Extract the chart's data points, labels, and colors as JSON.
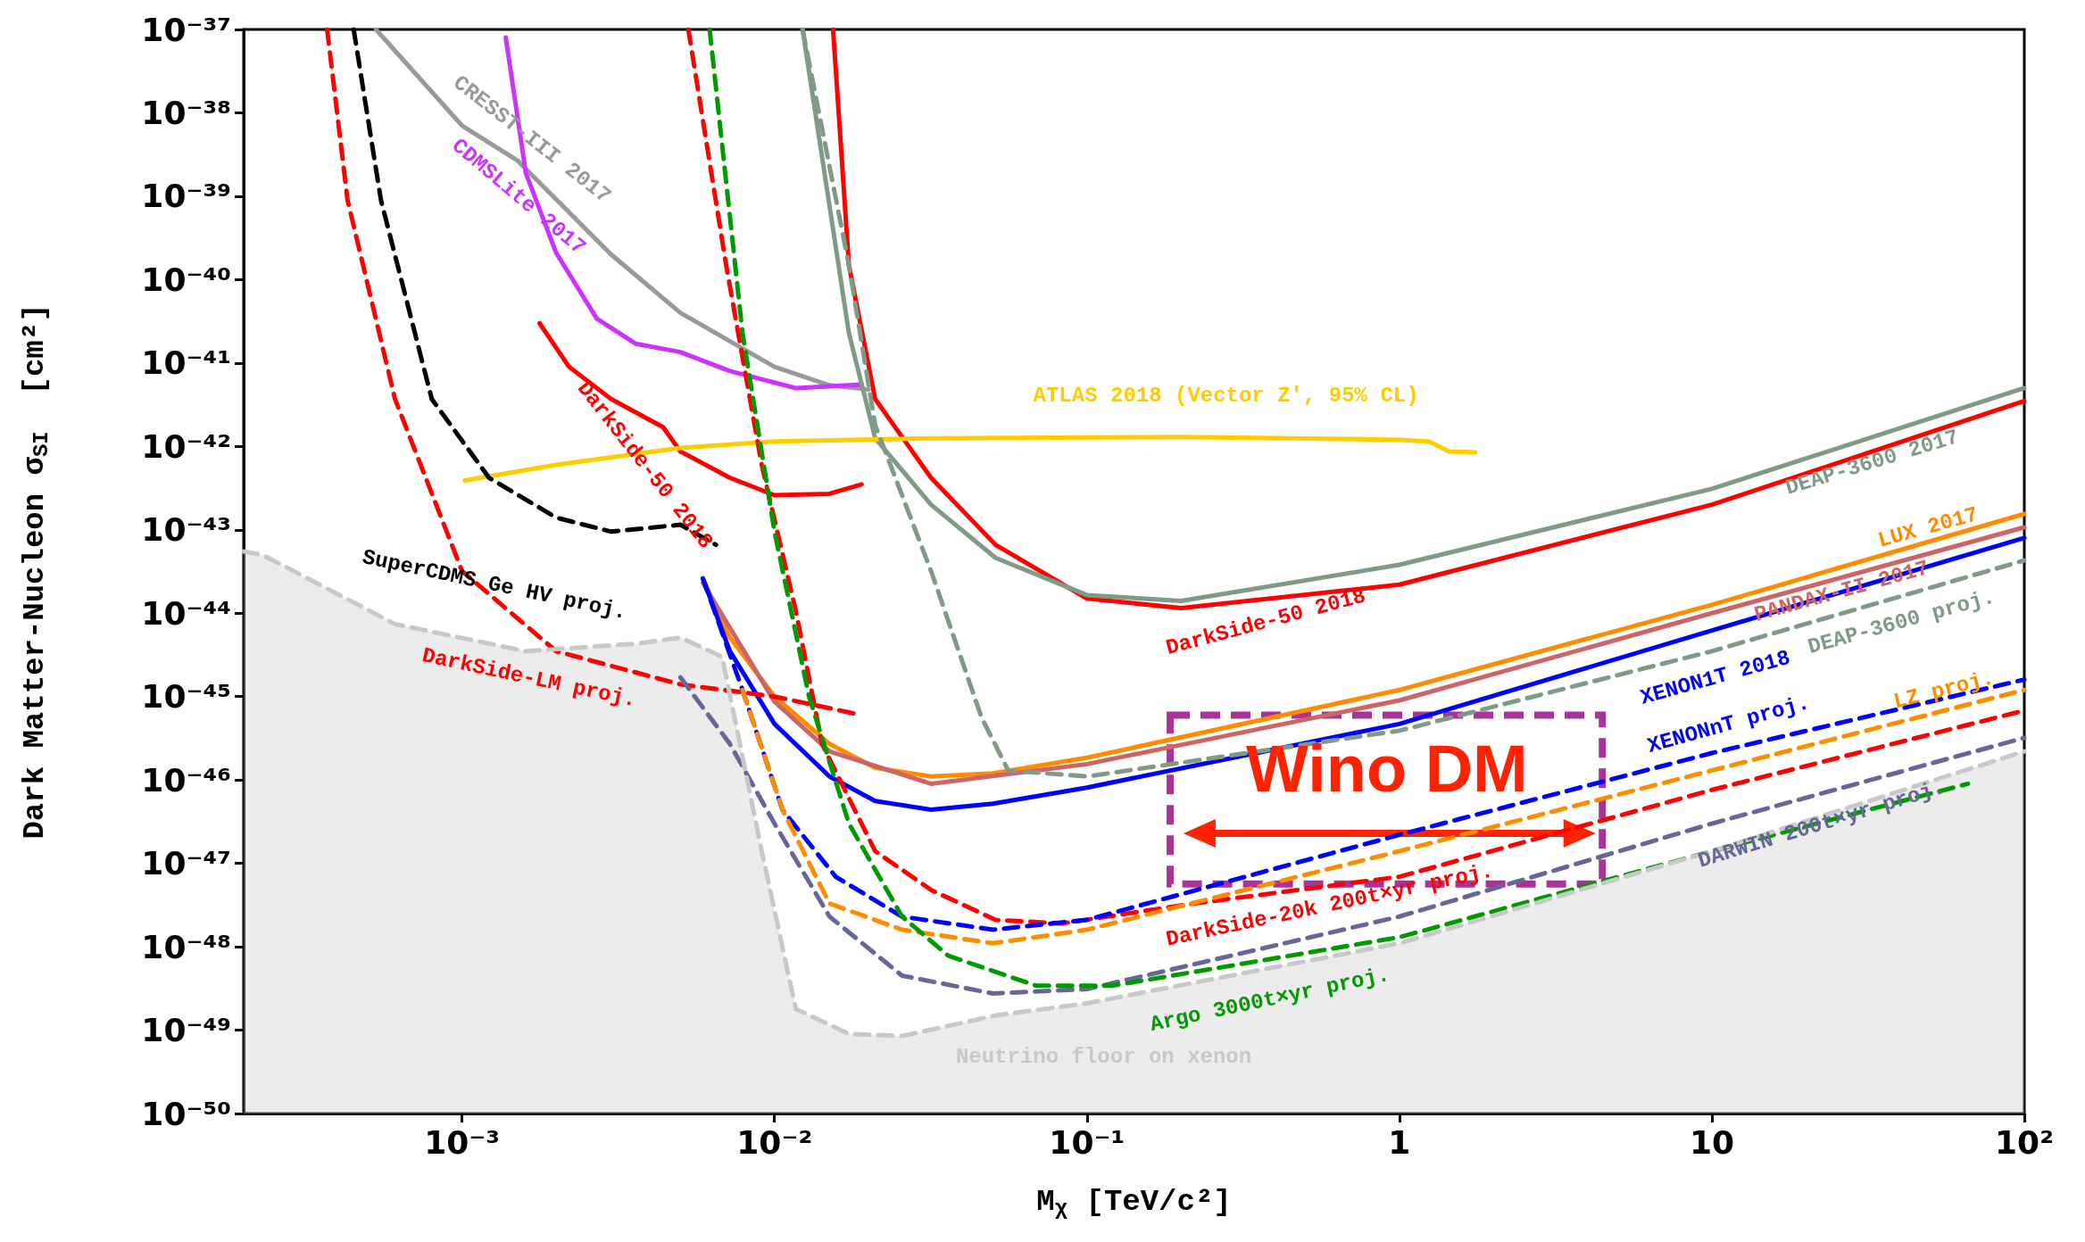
{
  "chart_data": {
    "type": "line",
    "xlabel": "M$_{χ}$ [TeV/c²]",
    "ylabel": "Dark Matter-Nucleon σ$_{SI}$  [cm²]",
    "log": "xy",
    "xlim": [
      0.0002,
      100
    ],
    "ylim": [
      1e-50,
      1e-37
    ],
    "xticks": [
      {
        "value": 0.001,
        "label": "10⁻³"
      },
      {
        "value": 0.01,
        "label": "10⁻²"
      },
      {
        "value": 0.1,
        "label": "10⁻¹"
      },
      1,
      10,
      {
        "value": 100,
        "label": "10²"
      }
    ],
    "yticks": [
      {
        "value": 1e-50,
        "label": "10⁻⁵⁰"
      },
      {
        "value": 1e-49,
        "label": "10⁻⁴⁹"
      },
      {
        "value": 1e-48,
        "label": "10⁻⁴⁸"
      },
      {
        "value": 1e-47,
        "label": "10⁻⁴⁷"
      },
      {
        "value": 1e-46,
        "label": "10⁻⁴⁶"
      },
      {
        "value": 1e-45,
        "label": "10⁻⁴⁵"
      },
      {
        "value": 1e-44,
        "label": "10⁻⁴⁴"
      },
      {
        "value": 1e-43,
        "label": "10⁻⁴³"
      },
      {
        "value": 1e-42,
        "label": "10⁻⁴²"
      },
      {
        "value": 1e-41,
        "label": "10⁻⁴¹"
      },
      {
        "value": 1e-40,
        "label": "10⁻⁴⁰"
      },
      {
        "value": 1e-39,
        "label": "10⁻³⁹"
      },
      {
        "value": 1e-38,
        "label": "10⁻³⁸"
      },
      {
        "value": 1e-37,
        "label": "10⁻³⁷"
      }
    ],
    "annotations": [
      "Wino DM"
    ],
    "series": [
      {
        "name": "CRESST-III 2017",
        "color": "#999999",
        "line_style": "solid",
        "x": [
          0.00053,
          0.001,
          0.0015,
          0.003,
          0.005,
          0.01,
          0.015,
          0.02
        ],
        "values": [
          1e-37,
          7e-39,
          2.7e-39,
          2e-40,
          4e-41,
          9e-42,
          5.4e-42,
          4.8e-42
        ]
      },
      {
        "name": "CDMSLite 2017",
        "color": "#cc33ff",
        "line_style": "solid",
        "x": [
          0.00138,
          0.0016,
          0.002,
          0.0027,
          0.0036,
          0.005,
          0.0072,
          0.0117,
          0.019
        ],
        "values": [
          8e-38,
          1.9e-39,
          2.1e-40,
          3.4e-41,
          1.7e-41,
          1.35e-41,
          8e-42,
          5e-42,
          5.5e-42
        ]
      },
      {
        "name": "DarkSide-50 2018",
        "color": "#ff0000",
        "line_style": "solid",
        "x": [
          0.00177,
          0.0022,
          0.003,
          0.0044,
          0.005,
          0.0072,
          0.01,
          0.015,
          0.019
        ],
        "values": [
          3e-41,
          9e-42,
          3.7e-42,
          1.7e-42,
          8.7e-43,
          4.2e-43,
          2.6e-43,
          2.7e-43,
          3.5e-43
        ]
      },
      {
        "name": "DarkSide-50 2018",
        "color": "#ff0000",
        "line_style": "solid",
        "x": [
          0.0154,
          0.0173,
          0.021,
          0.0317,
          0.051,
          0.1,
          0.2,
          1,
          10,
          100
        ],
        "values": [
          1e-37,
          1.5e-40,
          3.7e-42,
          4.2e-43,
          6.6e-44,
          1.5e-44,
          1.15e-44,
          2.2e-44,
          2e-43,
          3.5e-42
        ]
      },
      {
        "name": "DEAP-3600 2017",
        "color": "#7f9a86",
        "line_style": "solid",
        "x": [
          0.0123,
          0.0173,
          0.021,
          0.0317,
          0.051,
          0.1,
          0.2,
          1,
          10,
          100
        ],
        "values": [
          1e-37,
          2.3e-41,
          1.25e-42,
          2e-43,
          4.6e-44,
          1.65e-44,
          1.4e-44,
          3.8e-44,
          3.1e-43,
          5e-42
        ]
      },
      {
        "name": "ATLAS 2018 (Vector Z', 95% CL)",
        "color": "#ffcc00",
        "line_style": "solid",
        "x": [
          0.00102,
          0.002,
          0.005,
          0.01,
          0.0317,
          0.2,
          1,
          1.24,
          1.44,
          1.75
        ],
        "values": [
          3.9e-43,
          6e-43,
          9.6e-43,
          1.15e-42,
          1.25e-42,
          1.3e-42,
          1.2e-42,
          1.15e-42,
          8.7e-43,
          8.5e-43
        ]
      },
      {
        "name": "LUX 2017",
        "color": "#ff8c00",
        "line_style": "solid",
        "x": [
          0.0059,
          0.0072,
          0.01,
          0.015,
          0.021,
          0.0317,
          0.05,
          0.1,
          1,
          10,
          100
        ],
        "values": [
          2.6e-44,
          5.1e-45,
          1e-45,
          2.7e-46,
          1.4e-46,
          1.1e-46,
          1.2e-46,
          1.85e-46,
          1.2e-45,
          1.26e-44,
          1.55e-43
        ]
      },
      {
        "name": "PANDAX-II 2017",
        "color": "#cc6666",
        "line_style": "solid",
        "x": [
          0.0059,
          0.01,
          0.015,
          0.0317,
          0.1,
          1,
          10,
          100
        ],
        "values": [
          2.3e-44,
          8.7e-46,
          2.2e-46,
          9e-47,
          1.55e-46,
          9e-46,
          1e-44,
          1.07e-43
        ]
      },
      {
        "name": "XENON1T 2018",
        "color": "#0000ff",
        "line_style": "solid",
        "x": [
          0.0059,
          0.0072,
          0.01,
          0.015,
          0.021,
          0.0317,
          0.05,
          0.1,
          1,
          10,
          100
        ],
        "values": [
          2.6e-44,
          3.5e-45,
          4.7e-46,
          1.1e-46,
          5.6e-47,
          4.4e-47,
          5.2e-47,
          8.1e-47,
          4.7e-46,
          6.2e-45,
          8e-44
        ]
      },
      {
        "name": "DEAP-3600 proj.",
        "color": "#7f9a86",
        "line_style": "dashed",
        "x": [
          0.0123,
          0.0173,
          0.021,
          0.0317,
          0.046,
          0.056,
          0.1,
          1,
          10,
          100
        ],
        "values": [
          1e-37,
          1.5e-40,
          1.8e-42,
          3.2e-44,
          5.6e-46,
          1.3e-46,
          1.1e-46,
          3.9e-46,
          3.5e-45,
          4.3e-44
        ]
      },
      {
        "name": "SuperCDMS Ge HV proj.",
        "color": "#000000",
        "line_style": "dashed",
        "x": [
          0.00045,
          0.00055,
          0.0008,
          0.00122,
          0.002,
          0.003,
          0.005,
          0.0065
        ],
        "values": [
          1e-37,
          9e-40,
          3.7e-42,
          4.2e-43,
          1.4e-43,
          9.5e-44,
          1.15e-43,
          6.6e-44
        ]
      },
      {
        "name": "DarkSide-LM proj.",
        "color": "#ff0000",
        "line_style": "dashed",
        "x": [
          0.00037,
          0.00043,
          0.00061,
          0.001,
          0.002,
          0.005,
          0.01,
          0.019
        ],
        "values": [
          1e-37,
          9e-40,
          3.7e-42,
          3.2e-44,
          3.5e-45,
          1.4e-45,
          1e-45,
          6e-46
        ]
      },
      {
        "name": "DarkSide-20k 200t×yr proj.",
        "color": "#ff0000",
        "line_style": "dashed",
        "x": [
          0.0053,
          0.007,
          0.0091,
          0.0117,
          0.0142,
          0.021,
          0.0317,
          0.051,
          0.083,
          0.22,
          1,
          10,
          100
        ],
        "values": [
          1e-37,
          1.5e-40,
          6e-43,
          1.07e-44,
          2.7e-46,
          1.4e-47,
          4.8e-48,
          2.1e-48,
          1.9e-48,
          3.3e-48,
          6.9e-48,
          7.6e-47,
          6.8e-46
        ]
      },
      {
        "name": "XENONnT proj.",
        "color": "#0000ff",
        "line_style": "dashed",
        "x": [
          0.0059,
          0.0079,
          0.0106,
          0.0157,
          0.0256,
          0.05,
          0.1,
          1,
          10,
          100
        ],
        "values": [
          2.6e-44,
          1.2e-45,
          4.4e-47,
          6.9e-48,
          2.3e-48,
          1.6e-48,
          2.1e-48,
          2.2e-47,
          2.1e-46,
          1.6e-45
        ]
      },
      {
        "name": "LZ proj.",
        "color": "#ff8c00",
        "line_style": "dashed",
        "x": [
          0.0079,
          0.0106,
          0.015,
          0.0256,
          0.05,
          0.1,
          1,
          10,
          100
        ],
        "values": [
          1.2e-45,
          4.4e-47,
          3.3e-48,
          1.6e-48,
          1.1e-48,
          1.6e-48,
          1.4e-47,
          1.3e-46,
          1.2e-45
        ]
      },
      {
        "name": "DARWIN 200t×yr proj.",
        "color": "#666699",
        "line_style": "dashed",
        "x": [
          0.005,
          0.0072,
          0.01,
          0.015,
          0.0256,
          0.05,
          0.1,
          1,
          10,
          100
        ],
        "values": [
          1.7e-45,
          2.7e-46,
          3e-47,
          2.3e-48,
          4.5e-49,
          2.75e-49,
          3.1e-49,
          2.3e-48,
          3e-47,
          3.2e-46
        ]
      },
      {
        "name": "Argo 3000t×yr proj.",
        "color": "#009900",
        "line_style": "dashed",
        "x": [
          0.0062,
          0.0079,
          0.01,
          0.0129,
          0.0173,
          0.0256,
          0.036,
          0.069,
          0.12,
          1,
          10,
          66
        ],
        "values": [
          1e-37,
          2.3e-41,
          9.5e-44,
          1e-45,
          3e-47,
          2.3e-48,
          7.8e-49,
          3.4e-49,
          3.4e-49,
          1.3e-48,
          1.4e-47,
          9e-47
        ]
      },
      {
        "name": "Neutrino floor on xenon",
        "type": "area",
        "color": "#c8c8c8",
        "line_style": "dashed",
        "x": [
          0.0002,
          0.00023,
          0.00061,
          0.0016,
          0.0036,
          0.005,
          0.0068,
          0.0091,
          0.0117,
          0.0173,
          0.0256,
          0.051,
          0.1,
          1,
          10,
          100
        ],
        "values": [
          5.5e-44,
          5e-44,
          7.4e-45,
          3.5e-45,
          4.3e-45,
          5.1e-45,
          3e-45,
          1.4e-47,
          1.8e-49,
          9e-50,
          8.5e-50,
          1.5e-49,
          2.1e-49,
          1.1e-48,
          1.4e-47,
          2.2e-46
        ]
      }
    ]
  }
}
